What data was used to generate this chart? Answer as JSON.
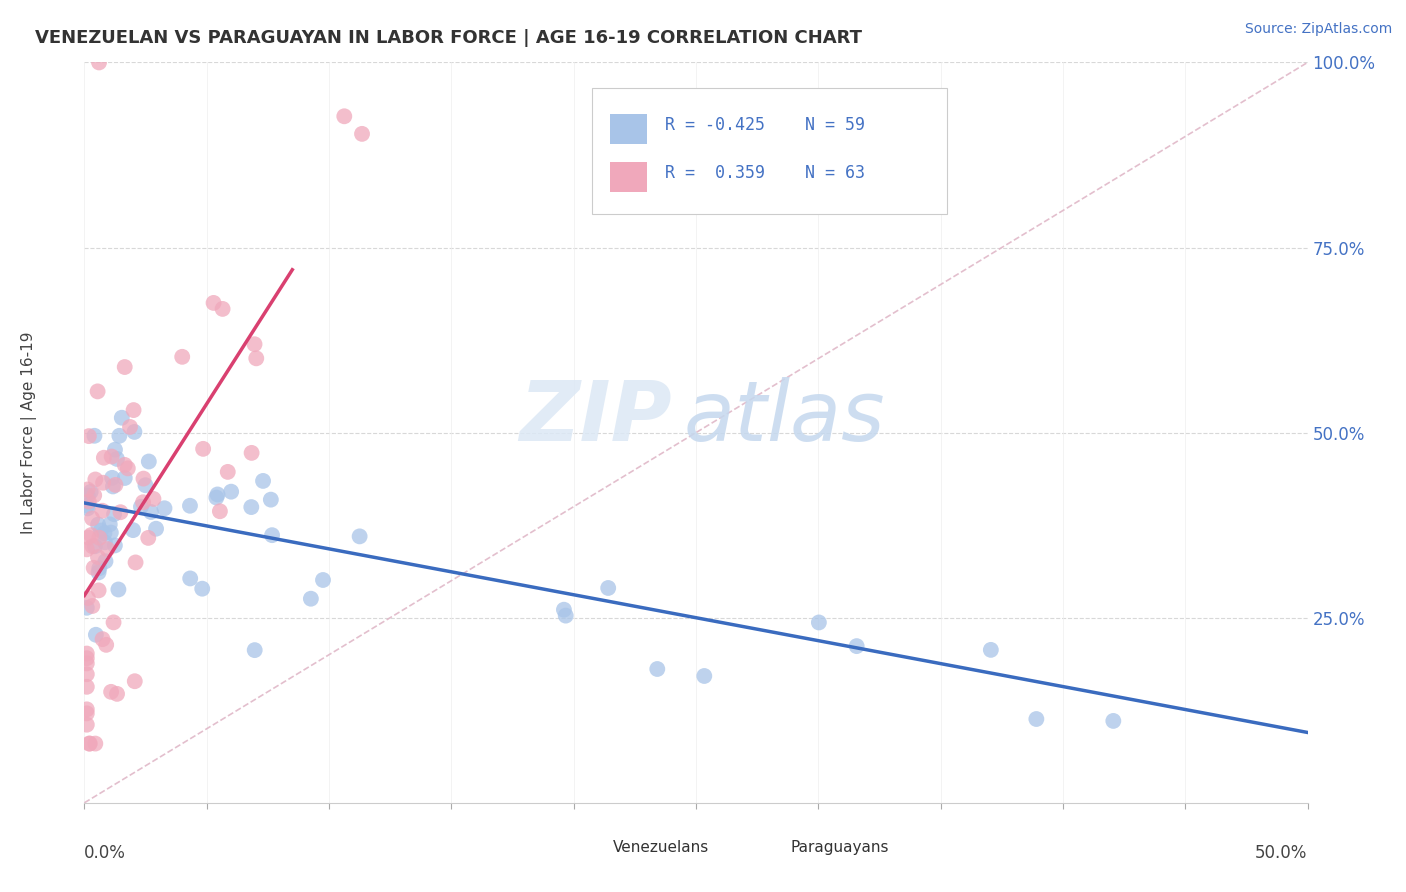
{
  "title": "VENEZUELAN VS PARAGUAYAN IN LABOR FORCE | AGE 16-19 CORRELATION CHART",
  "source": "Source: ZipAtlas.com",
  "ylabel": "In Labor Force | Age 16-19",
  "blue_color": "#a8c4e8",
  "pink_color": "#f0a8bb",
  "trend_blue": "#3a6bbf",
  "trend_pink": "#d94070",
  "diag_color": "#e0b8c8",
  "watermark_zip_color": "#dde8f5",
  "watermark_atlas_color": "#c8d8f0",
  "xlim": [
    0.0,
    0.5
  ],
  "ylim": [
    0.0,
    1.0
  ],
  "yticks": [
    0.0,
    0.25,
    0.5,
    0.75,
    1.0
  ],
  "ytick_labels": [
    "",
    "25.0%",
    "50.0%",
    "75.0%",
    "100.0%"
  ],
  "ven_trend_x0": 0.0,
  "ven_trend_y0": 0.405,
  "ven_trend_x1": 0.5,
  "ven_trend_y1": 0.095,
  "par_trend_x0": 0.0,
  "par_trend_y0": 0.28,
  "par_trend_x1": 0.085,
  "par_trend_y1": 0.72
}
